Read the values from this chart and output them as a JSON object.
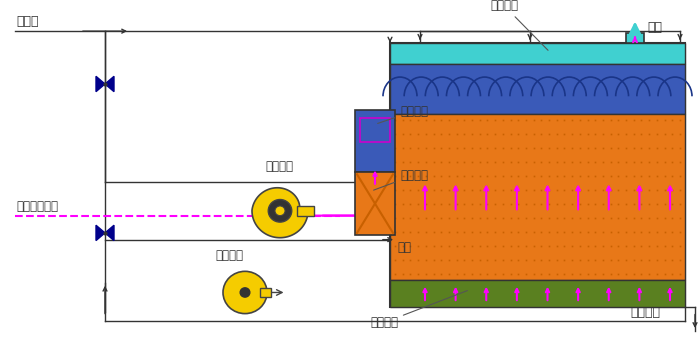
{
  "bg_color": "#ffffff",
  "pipe_color": "#333333",
  "magenta": "#ff00ff",
  "cyan_color": "#40d0d0",
  "blue_layer_color": "#3a5ab8",
  "orange_color": "#e87818",
  "green_color": "#5a8020",
  "dark_border": "#333333",
  "valve_color": "#00008b",
  "yellow_color": "#f5cc00",
  "label_jinshui": "进水管",
  "label_chouqi": "臭气收集管道",
  "label_jiashi": "加湿嘴头",
  "label_jiafill": "加湿填料",
  "label_chufeng": "除臭风机",
  "label_shuixiang": "水筱",
  "label_xunhuan": "循环水泵",
  "label_guanzhu": "灸洒嘴头",
  "label_shengwu": "生物填料",
  "label_paifang": "排放",
  "label_feishui": "废水排放"
}
